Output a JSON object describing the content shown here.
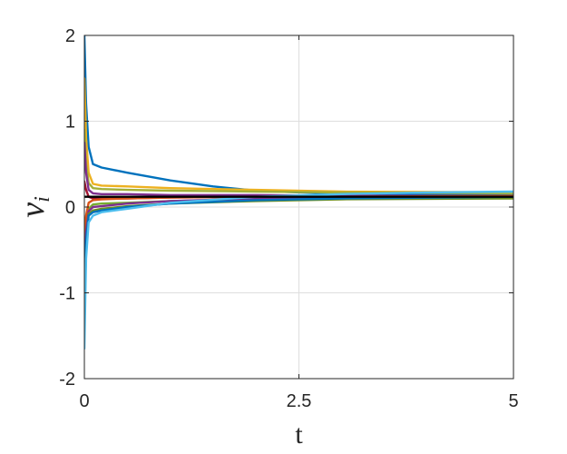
{
  "chart_data": {
    "type": "line",
    "xlabel": "t",
    "ylabel": "ν",
    "ylabel_subscript": "i",
    "xlim": [
      0,
      5
    ],
    "ylim": [
      -2,
      2
    ],
    "xticks": [
      0,
      2.5,
      5
    ],
    "xtick_labels": [
      "0",
      "2.5",
      "5"
    ],
    "yticks": [
      -2,
      -1,
      0,
      1,
      2
    ],
    "ytick_labels": [
      "-2",
      "-1",
      "0",
      "1",
      "2"
    ],
    "grid": true,
    "series": [
      {
        "color": "#0072BD",
        "x": [
          0,
          0.02,
          0.05,
          0.1,
          0.2,
          0.5,
          1,
          1.5,
          2,
          2.5,
          3,
          4,
          5
        ],
        "y": [
          2.0,
          1.2,
          0.7,
          0.5,
          0.46,
          0.4,
          0.31,
          0.24,
          0.19,
          0.17,
          0.16,
          0.15,
          0.15
        ]
      },
      {
        "color": "#EDB120",
        "x": [
          0,
          0.02,
          0.05,
          0.1,
          0.2,
          0.5,
          1,
          2,
          3,
          5
        ],
        "y": [
          1.5,
          0.8,
          0.4,
          0.27,
          0.25,
          0.24,
          0.22,
          0.2,
          0.18,
          0.17
        ]
      },
      {
        "color": "#A2B03A",
        "x": [
          0,
          0.02,
          0.05,
          0.1,
          0.2,
          0.5,
          1,
          2,
          3,
          5
        ],
        "y": [
          0.9,
          0.5,
          0.28,
          0.22,
          0.21,
          0.2,
          0.19,
          0.18,
          0.17,
          0.16
        ]
      },
      {
        "color": "#7E2F8E",
        "x": [
          0,
          0.02,
          0.05,
          0.1,
          0.2,
          0.5,
          1,
          2,
          3,
          5
        ],
        "y": [
          0.75,
          0.4,
          0.2,
          0.16,
          0.15,
          0.15,
          0.14,
          0.14,
          0.13,
          0.13
        ]
      },
      {
        "color": "#A2142F",
        "x": [
          0,
          0.02,
          0.05,
          0.1,
          0.2,
          0.5,
          1,
          2,
          3,
          5
        ],
        "y": [
          0.3,
          0.2,
          0.12,
          0.1,
          0.1,
          0.1,
          0.11,
          0.12,
          0.12,
          0.12
        ]
      },
      {
        "color": "#77AC30",
        "x": [
          0,
          0.02,
          0.05,
          0.1,
          0.2,
          0.5,
          1,
          2,
          3,
          5
        ],
        "y": [
          -0.4,
          -0.2,
          -0.02,
          0.03,
          0.04,
          0.05,
          0.07,
          0.09,
          0.1,
          0.12
        ]
      },
      {
        "color": "#D95319",
        "x": [
          0,
          0.02,
          0.05,
          0.1,
          0.2,
          0.5,
          1,
          2,
          3,
          5
        ],
        "y": [
          -0.3,
          -0.1,
          0.05,
          0.08,
          0.09,
          0.1,
          0.11,
          0.12,
          0.12,
          0.13
        ]
      },
      {
        "color": "#7E2F8E",
        "x": [
          0,
          0.02,
          0.05,
          0.1,
          0.2,
          0.5,
          1,
          2,
          3,
          5
        ],
        "y": [
          -0.8,
          -0.3,
          -0.05,
          0.0,
          0.01,
          0.04,
          0.07,
          0.1,
          0.11,
          0.12
        ]
      },
      {
        "color": "#6B8E23",
        "x": [
          0,
          0.02,
          0.05,
          0.1,
          0.2,
          0.5,
          1,
          2,
          3,
          5
        ],
        "y": [
          -1.3,
          -0.5,
          -0.08,
          -0.04,
          -0.02,
          0.01,
          0.04,
          0.07,
          0.09,
          0.1
        ]
      },
      {
        "color": "#0072BD",
        "x": [
          0,
          0.02,
          0.05,
          0.1,
          0.2,
          0.5,
          1,
          2,
          3,
          5
        ],
        "y": [
          -1.0,
          -0.4,
          -0.1,
          -0.06,
          -0.04,
          0.0,
          0.04,
          0.08,
          0.1,
          0.12
        ]
      },
      {
        "color": "#4DBEEE",
        "x": [
          0,
          0.02,
          0.05,
          0.1,
          0.2,
          0.5,
          1,
          2,
          3,
          4,
          5
        ],
        "y": [
          -1.65,
          -0.6,
          -0.18,
          -0.1,
          -0.06,
          -0.02,
          0.05,
          0.12,
          0.15,
          0.17,
          0.18
        ]
      },
      {
        "color": "#000000",
        "x": [
          0,
          5
        ],
        "y": [
          0.12,
          0.12
        ]
      }
    ]
  }
}
